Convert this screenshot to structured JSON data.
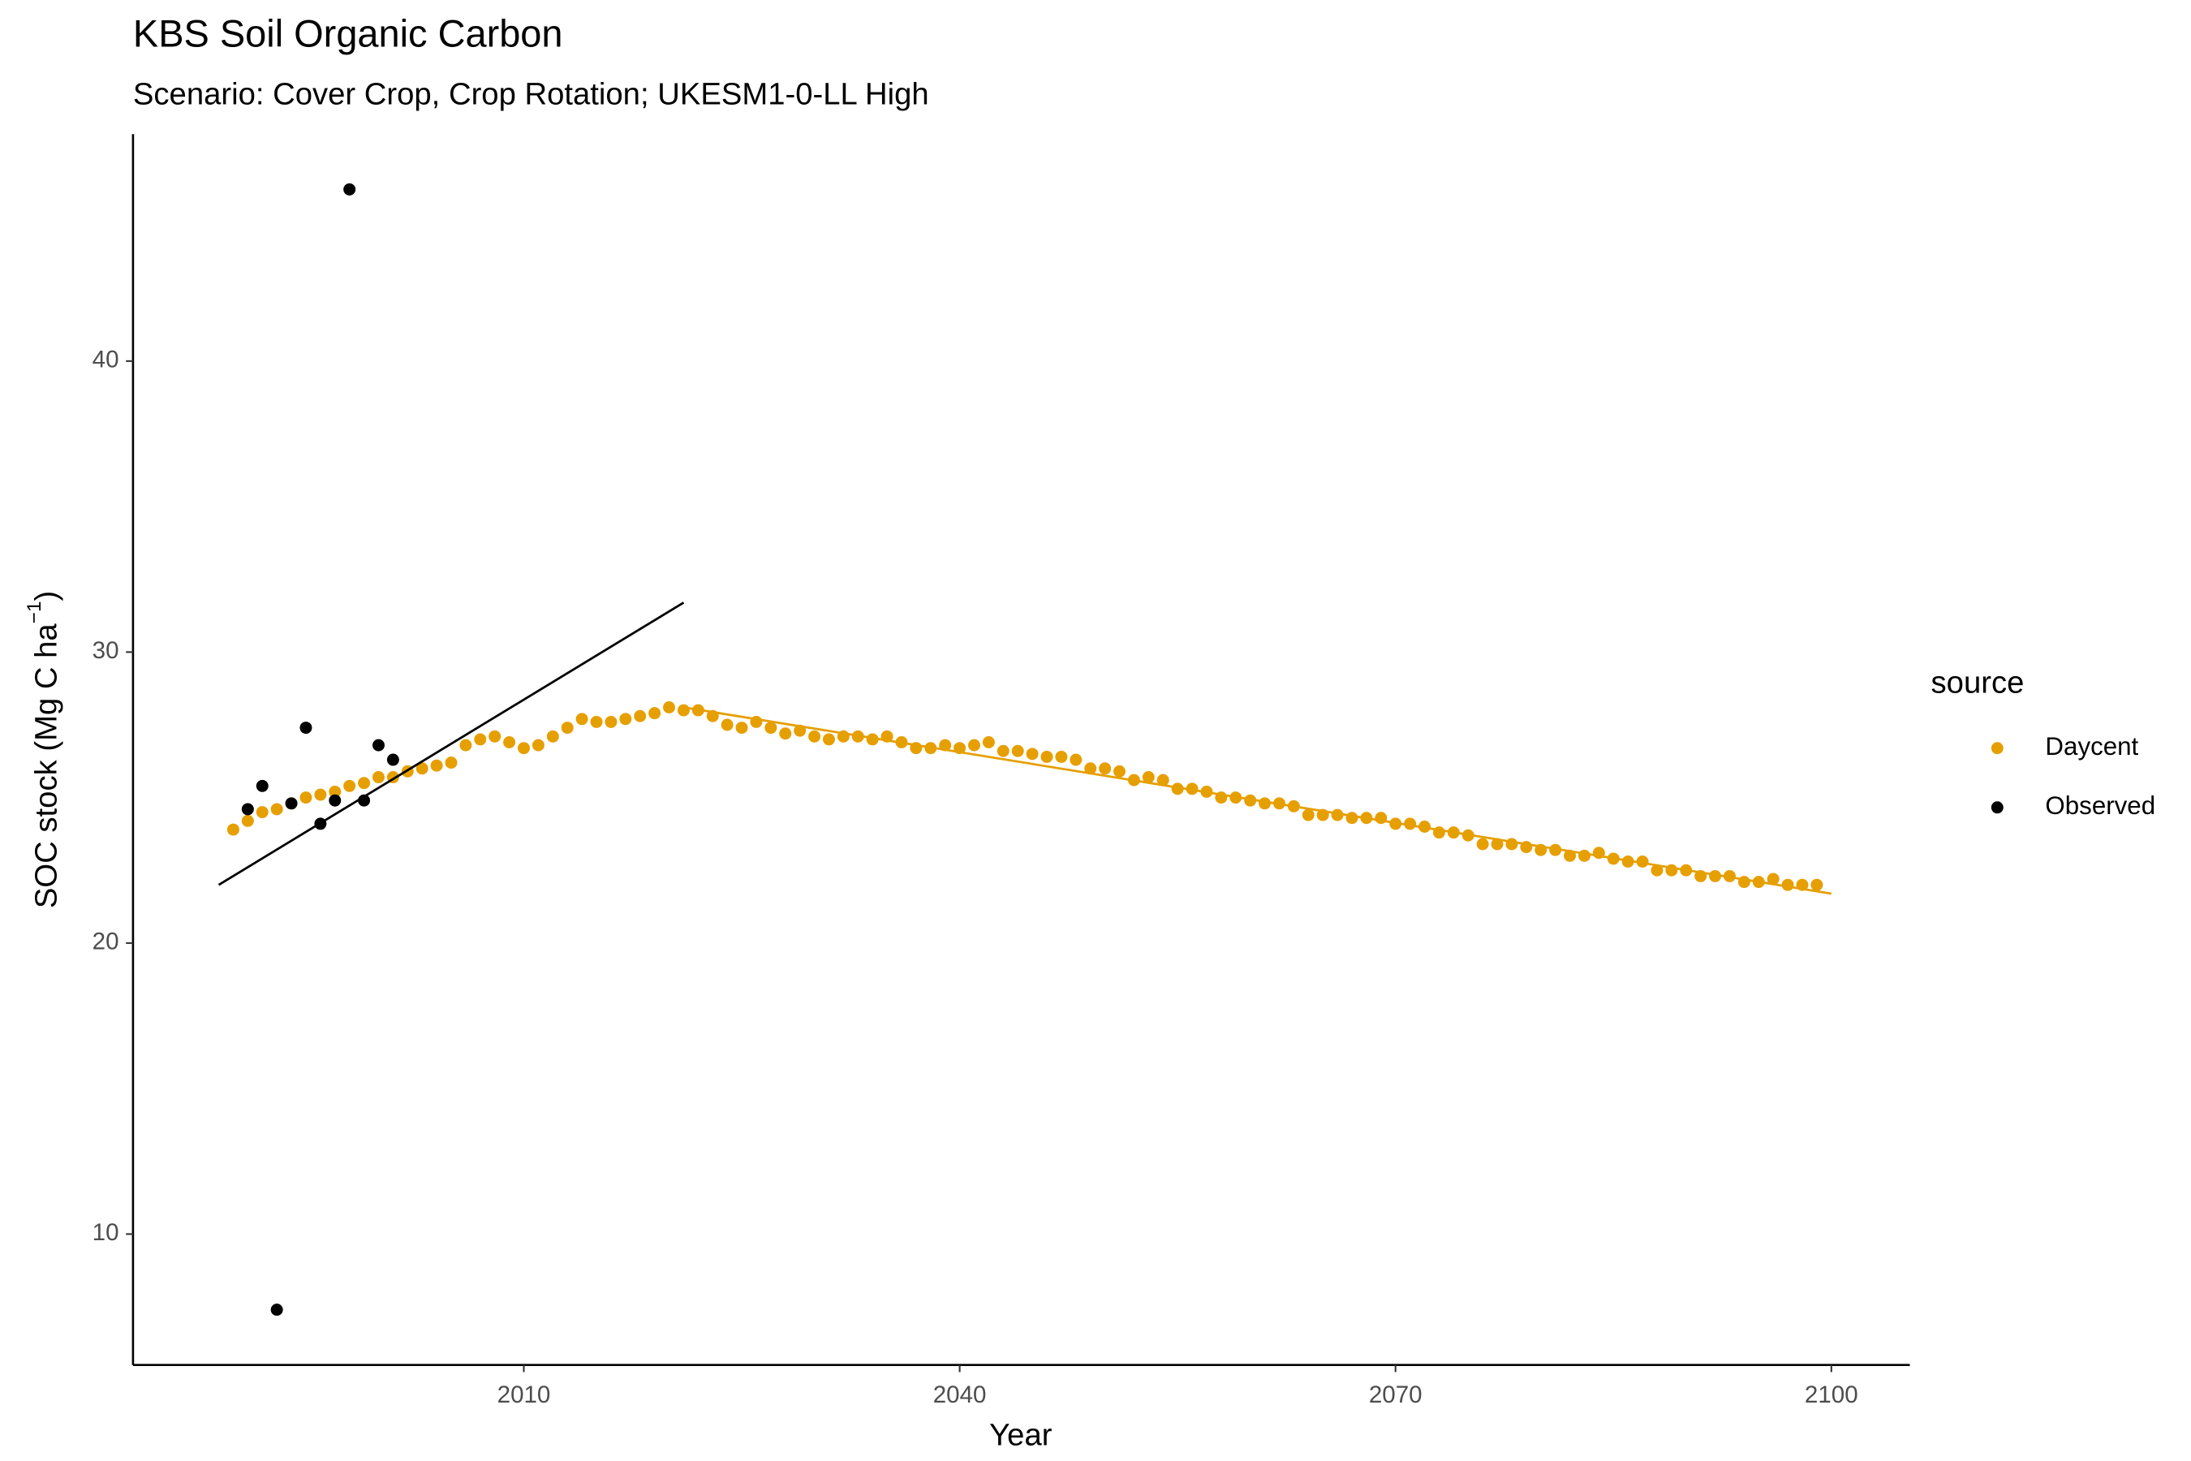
{
  "chart_data": {
    "type": "scatter",
    "title": "KBS Soil Organic Carbon",
    "subtitle": "Scenario: Cover Crop, Crop Rotation; UKESM1-0-LL High",
    "xlabel": "Year",
    "ylabel": "SOC stock (Mg C ha",
    "ylabel_sup": "−1",
    "ylabel_end": ")",
    "legend_title": "source",
    "legend_position": "right",
    "grid": false,
    "xlim": [
      1983.1,
      2105.4
    ],
    "ylim": [
      5.5,
      47.8
    ],
    "xticks": [
      2010,
      2040,
      2070,
      2100
    ],
    "yticks": [
      10,
      20,
      30,
      40
    ],
    "series": [
      {
        "name": "Daycent",
        "color": "#E69F00",
        "x": [
          1990,
          1991,
          1992,
          1993,
          1994,
          1995,
          1996,
          1997,
          1998,
          1999,
          2000,
          2001,
          2002,
          2003,
          2004,
          2005,
          2006,
          2007,
          2008,
          2009,
          2010,
          2011,
          2012,
          2013,
          2014,
          2015,
          2016,
          2017,
          2018,
          2019,
          2020,
          2021,
          2022,
          2023,
          2024,
          2025,
          2026,
          2027,
          2028,
          2029,
          2030,
          2031,
          2032,
          2033,
          2034,
          2035,
          2036,
          2037,
          2038,
          2039,
          2040,
          2041,
          2042,
          2043,
          2044,
          2045,
          2046,
          2047,
          2048,
          2049,
          2050,
          2051,
          2052,
          2053,
          2054,
          2055,
          2056,
          2057,
          2058,
          2059,
          2060,
          2061,
          2062,
          2063,
          2064,
          2065,
          2066,
          2067,
          2068,
          2069,
          2070,
          2071,
          2072,
          2073,
          2074,
          2075,
          2076,
          2077,
          2078,
          2079,
          2080,
          2081,
          2082,
          2083,
          2084,
          2085,
          2086,
          2087,
          2088,
          2089,
          2090,
          2091,
          2092,
          2093,
          2094,
          2095,
          2096,
          2097,
          2098,
          2099
        ],
        "values": [
          23.9,
          24.2,
          24.5,
          24.6,
          24.8,
          25.0,
          25.1,
          25.2,
          25.4,
          25.5,
          25.7,
          25.7,
          25.9,
          26.0,
          26.1,
          26.2,
          26.8,
          27.0,
          27.1,
          26.9,
          26.7,
          26.8,
          27.1,
          27.4,
          27.7,
          27.6,
          27.6,
          27.7,
          27.8,
          27.9,
          28.1,
          28.0,
          28.0,
          27.8,
          27.5,
          27.4,
          27.6,
          27.4,
          27.2,
          27.3,
          27.1,
          27.0,
          27.1,
          27.1,
          27.0,
          27.1,
          26.9,
          26.7,
          26.7,
          26.8,
          26.7,
          26.8,
          26.9,
          26.6,
          26.6,
          26.5,
          26.4,
          26.4,
          26.3,
          26.0,
          26.0,
          25.9,
          25.6,
          25.7,
          25.6,
          25.3,
          25.3,
          25.2,
          25.0,
          25.0,
          24.9,
          24.8,
          24.8,
          24.7,
          24.4,
          24.4,
          24.4,
          24.3,
          24.3,
          24.3,
          24.1,
          24.1,
          24.0,
          23.8,
          23.8,
          23.7,
          23.4,
          23.4,
          23.4,
          23.3,
          23.2,
          23.2,
          23.0,
          23.0,
          23.1,
          22.9,
          22.8,
          22.8,
          22.5,
          22.5,
          22.5,
          22.3,
          22.3,
          22.3,
          22.1,
          22.1,
          22.2,
          22.0,
          22.0,
          22.0
        ]
      },
      {
        "name": "Observed",
        "color": "#000000",
        "x": [
          1991,
          1992,
          1993,
          1994,
          1995,
          1996,
          1997,
          1998,
          1999,
          2000,
          2001
        ],
        "values": [
          24.6,
          25.4,
          7.4,
          24.8,
          27.4,
          24.1,
          24.9,
          45.9,
          24.9,
          26.8,
          26.3
        ]
      }
    ],
    "trend_lines": [
      {
        "color": "#000000",
        "x": [
          1989,
          2021
        ],
        "values": [
          22.0,
          31.7
        ]
      },
      {
        "color": "#E69F00",
        "x": [
          2021,
          2100
        ],
        "values": [
          28.1,
          21.7
        ]
      }
    ]
  }
}
